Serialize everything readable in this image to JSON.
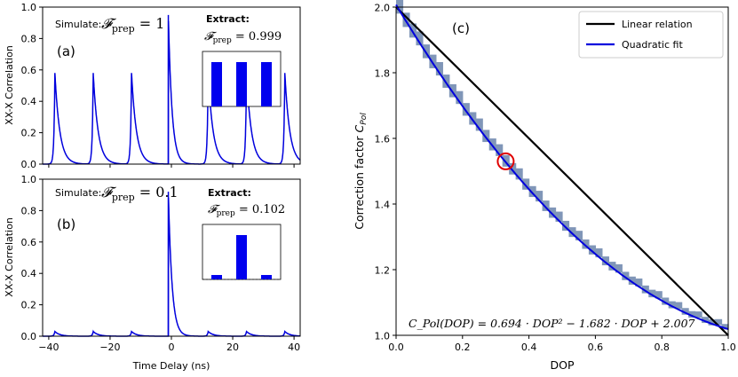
{
  "chart_data": [
    {
      "id": "a",
      "type": "line",
      "panel_label": "(a)",
      "ylabel": "XX-X Correlation",
      "xlim": [
        -42,
        42
      ],
      "ylim": [
        0,
        1.0
      ],
      "yticks": [
        "0.0",
        "0.2",
        "0.4",
        "0.6",
        "0.8",
        "1.0"
      ],
      "series_color": "#0000dd",
      "side_peaks": {
        "positions": [
          -38,
          -25.5,
          -13,
          12,
          24.5,
          37
        ],
        "height": 0.58
      },
      "center_peak": {
        "position": -1,
        "height": 0.95
      },
      "simulate_label": "Simulate:",
      "simulate_math": "F_prep = 1",
      "inset": {
        "title": "Extract:",
        "math": "F_prep = 0.999",
        "bars": [
          1,
          1,
          1
        ]
      }
    },
    {
      "id": "b",
      "type": "line",
      "panel_label": "(b)",
      "ylabel": "XX-X Correlation",
      "xlabel": "Time Delay (ns)",
      "xlim": [
        -42,
        42
      ],
      "ylim": [
        0,
        1.0
      ],
      "xticks": [
        "−40",
        "−20",
        "0",
        "20",
        "40"
      ],
      "yticks": [
        "0.0",
        "0.2",
        "0.4",
        "0.6",
        "0.8",
        "1.0"
      ],
      "series_color": "#0000dd",
      "side_peaks": {
        "positions": [
          -38,
          -25.5,
          -13,
          12,
          24.5,
          37
        ],
        "height": 0.03
      },
      "center_peak": {
        "position": -1,
        "height": 0.92
      },
      "simulate_label": "Simulate:",
      "simulate_math": "F_prep = 0.1",
      "inset": {
        "title": "Extract:",
        "math": "F_prep = 0.102",
        "bars": [
          0.1,
          1,
          0.1
        ]
      }
    },
    {
      "id": "c",
      "type": "line",
      "panel_label": "(c)",
      "xlabel": "DOP",
      "ylabel": "Correction factor C_Pol",
      "xlim": [
        0.0,
        1.0
      ],
      "ylim": [
        1.0,
        2.0
      ],
      "xticks": [
        "0.0",
        "0.2",
        "0.4",
        "0.6",
        "0.8",
        "1.0"
      ],
      "yticks": [
        "1.0",
        "1.2",
        "1.4",
        "1.6",
        "1.8",
        "2.0"
      ],
      "series": [
        {
          "name": "Linear relation",
          "color": "#000000",
          "x": [
            0.0,
            1.0
          ],
          "y": [
            2.0,
            1.0
          ]
        },
        {
          "name": "Quadratic fit",
          "color": "#0000dd",
          "a": 0.694,
          "b": -1.682,
          "c": 2.007
        }
      ],
      "staircase_color": "#8096b8",
      "highlight_point": {
        "x": 0.33,
        "y": 1.53,
        "color": "#e00000"
      },
      "equation": "C_Pol(DOP) = 0.694 · DOP² − 1.682 · DOP + 2.007",
      "legend": {
        "location": "top-right",
        "items": [
          "Linear relation",
          "Quadratic fit"
        ]
      }
    }
  ]
}
